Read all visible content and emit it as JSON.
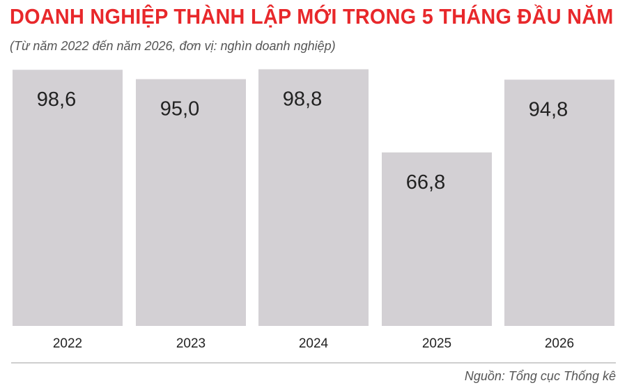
{
  "title": "DOANH NGHIỆP THÀNH LẬP MỚI TRONG 5 THÁNG ĐẦU NĂM",
  "subtitle": "(Từ năm 2022 đến năm 2026, đơn vị: nghìn doanh nghiệp)",
  "source": "Nguồn: Tổng cục Thống kê",
  "colors": {
    "title": "#e8282b",
    "bar": "#d3d0d4",
    "text": "#222222",
    "axis": "#bdbdbd"
  },
  "chart_data": {
    "type": "bar",
    "categories": [
      "2022",
      "2023",
      "2024",
      "2025",
      "2026"
    ],
    "values": [
      98.6,
      95.0,
      98.8,
      66.8,
      94.8
    ],
    "value_labels": [
      "98,6",
      "95,0",
      "98,8",
      "66,8",
      "94,8"
    ],
    "title": "DOANH NGHIỆP THÀNH LẬP MỚI TRONG 5 THÁNG ĐẦU NĂM",
    "xlabel": "",
    "ylabel": "",
    "ylim": [
      0,
      100
    ],
    "grid": false,
    "legend": "none"
  }
}
